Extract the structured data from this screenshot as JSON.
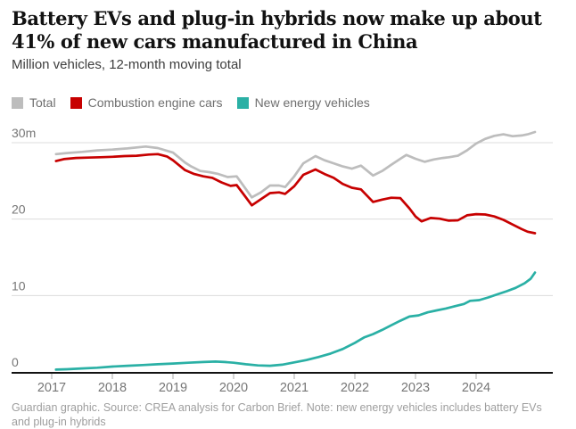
{
  "header": {
    "title": "Battery EVs and plug-in hybrids now make up about 41% of new cars manufactured in China",
    "subtitle": "Million vehicles, 12-month moving total"
  },
  "legend": {
    "items": [
      {
        "label": "Total",
        "color": "#bdbdbd"
      },
      {
        "label": "Combustion engine cars",
        "color": "#c70000"
      },
      {
        "label": "New energy vehicles",
        "color": "#2ab0a5"
      }
    ]
  },
  "footer": {
    "note": "Guardian graphic. Source: CREA analysis for Carbon Brief. Note: new energy vehicles includes battery EVs and plug-in hybrids"
  },
  "colors": {
    "axis": "#121212",
    "gridline": "#dcdcdc",
    "tick": "#a8a8a8",
    "axis_label": "#767676"
  },
  "chart_data": {
    "type": "line",
    "title": "Battery EVs and plug-in hybrids now make up about 41% of new cars manufactured in China",
    "units": "Million vehicles, 12-month moving total",
    "xlabel": "",
    "ylabel": "Million vehicles",
    "xlim": [
      2017,
      2025
    ],
    "ylim": [
      0,
      31.5
    ],
    "x_ticks": [
      2017,
      2018,
      2019,
      2020,
      2021,
      2022,
      2023,
      2024
    ],
    "y_ticks": [
      0,
      10,
      20,
      30
    ],
    "y_tick_labels": [
      "0",
      "10",
      "20",
      "30m"
    ],
    "grid": "horizontal",
    "legend_position": "top",
    "series": [
      {
        "name": "Total",
        "color": "#bdbdbd",
        "points": [
          [
            2017.07,
            28.5
          ],
          [
            2017.25,
            28.65
          ],
          [
            2017.5,
            28.8
          ],
          [
            2017.75,
            29.0
          ],
          [
            2018.0,
            29.1
          ],
          [
            2018.25,
            29.25
          ],
          [
            2018.55,
            29.5
          ],
          [
            2018.75,
            29.3
          ],
          [
            2019.0,
            28.7
          ],
          [
            2019.2,
            27.4
          ],
          [
            2019.3,
            26.9
          ],
          [
            2019.45,
            26.3
          ],
          [
            2019.6,
            26.15
          ],
          [
            2019.75,
            25.9
          ],
          [
            2019.9,
            25.5
          ],
          [
            2020.05,
            25.6
          ],
          [
            2020.15,
            24.5
          ],
          [
            2020.3,
            22.85
          ],
          [
            2020.45,
            23.5
          ],
          [
            2020.6,
            24.4
          ],
          [
            2020.75,
            24.4
          ],
          [
            2020.85,
            24.2
          ],
          [
            2021.0,
            25.6
          ],
          [
            2021.15,
            27.3
          ],
          [
            2021.35,
            28.25
          ],
          [
            2021.5,
            27.7
          ],
          [
            2021.65,
            27.3
          ],
          [
            2021.8,
            26.9
          ],
          [
            2021.95,
            26.6
          ],
          [
            2022.1,
            27.0
          ],
          [
            2022.3,
            25.7
          ],
          [
            2022.45,
            26.3
          ],
          [
            2022.6,
            27.1
          ],
          [
            2022.75,
            27.9
          ],
          [
            2022.85,
            28.4
          ],
          [
            2023.0,
            27.9
          ],
          [
            2023.15,
            27.5
          ],
          [
            2023.3,
            27.8
          ],
          [
            2023.45,
            28.0
          ],
          [
            2023.55,
            28.1
          ],
          [
            2023.7,
            28.3
          ],
          [
            2023.85,
            29.0
          ],
          [
            2024.0,
            29.9
          ],
          [
            2024.15,
            30.5
          ],
          [
            2024.3,
            30.9
          ],
          [
            2024.45,
            31.1
          ],
          [
            2024.6,
            30.85
          ],
          [
            2024.75,
            30.95
          ],
          [
            2024.85,
            31.1
          ],
          [
            2024.97,
            31.4
          ]
        ]
      },
      {
        "name": "Combustion engine cars",
        "color": "#c70000",
        "points": [
          [
            2017.07,
            27.6
          ],
          [
            2017.2,
            27.85
          ],
          [
            2017.4,
            28.0
          ],
          [
            2017.6,
            28.05
          ],
          [
            2017.8,
            28.1
          ],
          [
            2018.0,
            28.15
          ],
          [
            2018.2,
            28.25
          ],
          [
            2018.4,
            28.3
          ],
          [
            2018.6,
            28.45
          ],
          [
            2018.75,
            28.5
          ],
          [
            2018.9,
            28.2
          ],
          [
            2019.0,
            27.7
          ],
          [
            2019.2,
            26.4
          ],
          [
            2019.35,
            25.9
          ],
          [
            2019.5,
            25.6
          ],
          [
            2019.65,
            25.4
          ],
          [
            2019.8,
            24.8
          ],
          [
            2019.95,
            24.35
          ],
          [
            2020.05,
            24.45
          ],
          [
            2020.15,
            23.4
          ],
          [
            2020.3,
            21.8
          ],
          [
            2020.45,
            22.6
          ],
          [
            2020.6,
            23.4
          ],
          [
            2020.75,
            23.5
          ],
          [
            2020.85,
            23.3
          ],
          [
            2021.0,
            24.3
          ],
          [
            2021.15,
            25.8
          ],
          [
            2021.35,
            26.5
          ],
          [
            2021.5,
            25.9
          ],
          [
            2021.65,
            25.4
          ],
          [
            2021.8,
            24.6
          ],
          [
            2021.95,
            24.1
          ],
          [
            2022.1,
            23.9
          ],
          [
            2022.3,
            22.25
          ],
          [
            2022.45,
            22.55
          ],
          [
            2022.6,
            22.8
          ],
          [
            2022.75,
            22.75
          ],
          [
            2022.9,
            21.4
          ],
          [
            2023.0,
            20.35
          ],
          [
            2023.1,
            19.7
          ],
          [
            2023.25,
            20.15
          ],
          [
            2023.4,
            20.05
          ],
          [
            2023.55,
            19.8
          ],
          [
            2023.7,
            19.85
          ],
          [
            2023.85,
            20.5
          ],
          [
            2024.0,
            20.65
          ],
          [
            2024.15,
            20.6
          ],
          [
            2024.3,
            20.35
          ],
          [
            2024.45,
            19.9
          ],
          [
            2024.6,
            19.3
          ],
          [
            2024.75,
            18.7
          ],
          [
            2024.85,
            18.35
          ],
          [
            2024.97,
            18.15
          ]
        ]
      },
      {
        "name": "New energy vehicles",
        "color": "#2ab0a5",
        "points": [
          [
            2017.07,
            0.3
          ],
          [
            2017.25,
            0.35
          ],
          [
            2017.5,
            0.45
          ],
          [
            2017.75,
            0.55
          ],
          [
            2018.0,
            0.7
          ],
          [
            2018.25,
            0.8
          ],
          [
            2018.5,
            0.9
          ],
          [
            2018.75,
            1.0
          ],
          [
            2019.0,
            1.1
          ],
          [
            2019.25,
            1.2
          ],
          [
            2019.5,
            1.3
          ],
          [
            2019.7,
            1.35
          ],
          [
            2019.85,
            1.3
          ],
          [
            2020.0,
            1.2
          ],
          [
            2020.2,
            1.0
          ],
          [
            2020.4,
            0.85
          ],
          [
            2020.6,
            0.8
          ],
          [
            2020.8,
            0.95
          ],
          [
            2021.0,
            1.25
          ],
          [
            2021.2,
            1.55
          ],
          [
            2021.4,
            1.95
          ],
          [
            2021.6,
            2.4
          ],
          [
            2021.8,
            3.0
          ],
          [
            2022.0,
            3.8
          ],
          [
            2022.15,
            4.5
          ],
          [
            2022.3,
            4.95
          ],
          [
            2022.45,
            5.5
          ],
          [
            2022.6,
            6.1
          ],
          [
            2022.75,
            6.7
          ],
          [
            2022.9,
            7.25
          ],
          [
            2023.05,
            7.4
          ],
          [
            2023.2,
            7.8
          ],
          [
            2023.35,
            8.05
          ],
          [
            2023.5,
            8.3
          ],
          [
            2023.65,
            8.6
          ],
          [
            2023.8,
            8.9
          ],
          [
            2023.9,
            9.3
          ],
          [
            2024.05,
            9.4
          ],
          [
            2024.2,
            9.75
          ],
          [
            2024.35,
            10.15
          ],
          [
            2024.5,
            10.55
          ],
          [
            2024.65,
            11.0
          ],
          [
            2024.8,
            11.6
          ],
          [
            2024.9,
            12.2
          ],
          [
            2024.97,
            13.0
          ]
        ]
      }
    ]
  }
}
